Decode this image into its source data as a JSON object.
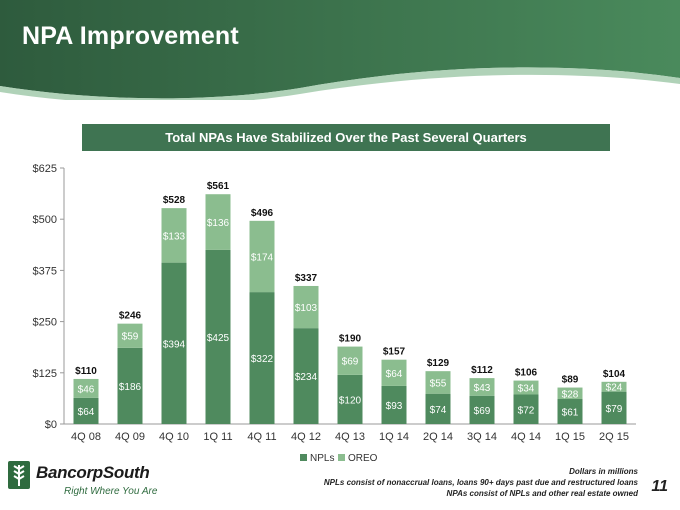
{
  "slide": {
    "title": "NPA Improvement",
    "subtitle": "Total NPAs Have Stabilized Over the Past Several Quarters",
    "logo_text": "BancorpSouth",
    "tagline": "Right Where You Are",
    "notes": [
      "Dollars in millions",
      "NPLs consist of nonaccrual loans, loans 90+ days past due and restructured loans",
      "NPAs consist of NPLs and other real estate owned"
    ],
    "page_number": "11"
  },
  "colors": {
    "npl": "#4f8a5e",
    "oreo": "#8bbd8f",
    "header_dark": "#2f5d3f",
    "header_light": "#4d8a5f"
  },
  "chart_data": {
    "type": "bar",
    "stacked": true,
    "categories": [
      "4Q 08",
      "4Q 09",
      "4Q 10",
      "1Q 11",
      "4Q 11",
      "4Q 12",
      "4Q 13",
      "1Q 14",
      "2Q 14",
      "3Q 14",
      "4Q 14",
      "1Q 15",
      "2Q 15"
    ],
    "series": [
      {
        "name": "NPLs",
        "values": [
          64,
          186,
          394,
          425,
          322,
          234,
          120,
          93,
          74,
          69,
          72,
          61,
          79
        ],
        "labels": [
          "$64",
          "$186",
          "$394",
          "$425",
          "$322",
          "$234",
          "$120",
          "$93",
          "$74",
          "$69",
          "$72",
          "$61",
          "$79"
        ]
      },
      {
        "name": "OREO",
        "values": [
          46,
          59,
          133,
          136,
          174,
          103,
          69,
          64,
          55,
          43,
          34,
          28,
          24
        ],
        "labels": [
          "$46",
          "$59",
          "$133",
          "$136",
          "$174",
          "$103",
          "$69",
          "$64",
          "$55",
          "$43",
          "$34",
          "$28",
          "$24"
        ]
      }
    ],
    "totals": [
      "$110",
      "$246",
      "$528",
      "$561",
      "$496",
      "$337",
      "$190",
      "$157",
      "$129",
      "$112",
      "$106",
      "$89",
      "$104"
    ],
    "total_values": [
      110,
      246,
      528,
      561,
      496,
      337,
      190,
      157,
      129,
      112,
      106,
      89,
      104
    ],
    "ylim": [
      0,
      625
    ],
    "yticks": [
      0,
      125,
      250,
      375,
      500,
      625
    ],
    "ytick_labels": [
      "$0",
      "$125",
      "$250",
      "$375",
      "$500",
      "$625"
    ],
    "legend_placement": "bottom-center",
    "grid": false
  }
}
